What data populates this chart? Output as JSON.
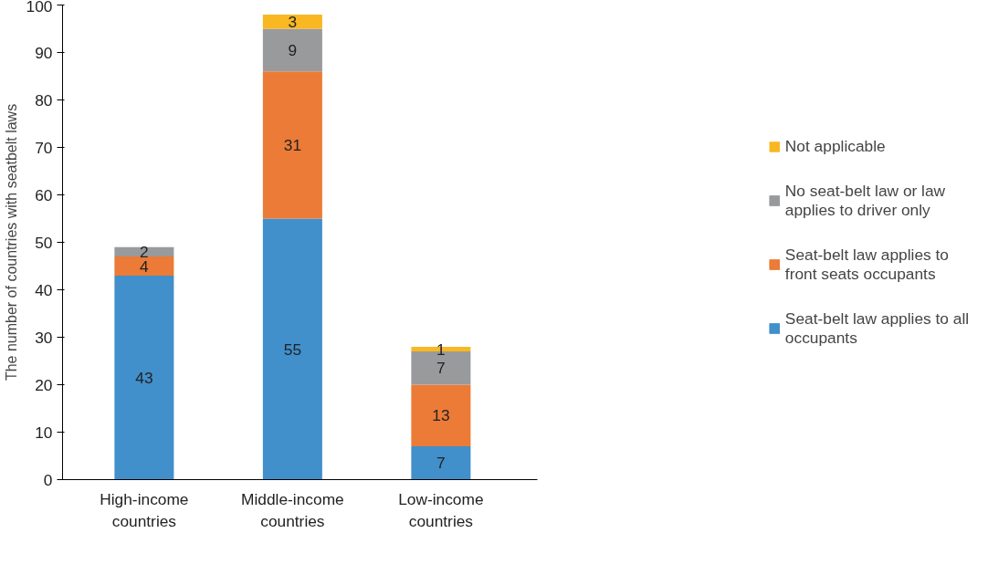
{
  "chart_data": {
    "type": "bar",
    "stacked": true,
    "ylabel": "The number of countries with seatbelt laws",
    "categories": [
      "High-income countries",
      "Middle-income countries",
      "Low-income countries"
    ],
    "series": [
      {
        "name": "Seat-belt law applies to all occupants",
        "color": "#418fcb",
        "values": [
          43,
          55,
          7
        ]
      },
      {
        "name": "Seat-belt law applies to front seats occupants",
        "color": "#eb7b36",
        "values": [
          4,
          31,
          13
        ]
      },
      {
        "name": "No seat-belt law or law applies to driver only",
        "color": "#999a9c",
        "values": [
          2,
          9,
          7
        ]
      },
      {
        "name": "Not applicable",
        "color": "#f9b821",
        "values": [
          null,
          3,
          1
        ]
      }
    ],
    "ylim": [
      0,
      100
    ],
    "yticks": [
      0,
      10,
      20,
      30,
      40,
      50,
      60,
      70,
      80,
      90,
      100
    ],
    "grid": false,
    "legend": "right",
    "data_labels": true
  }
}
